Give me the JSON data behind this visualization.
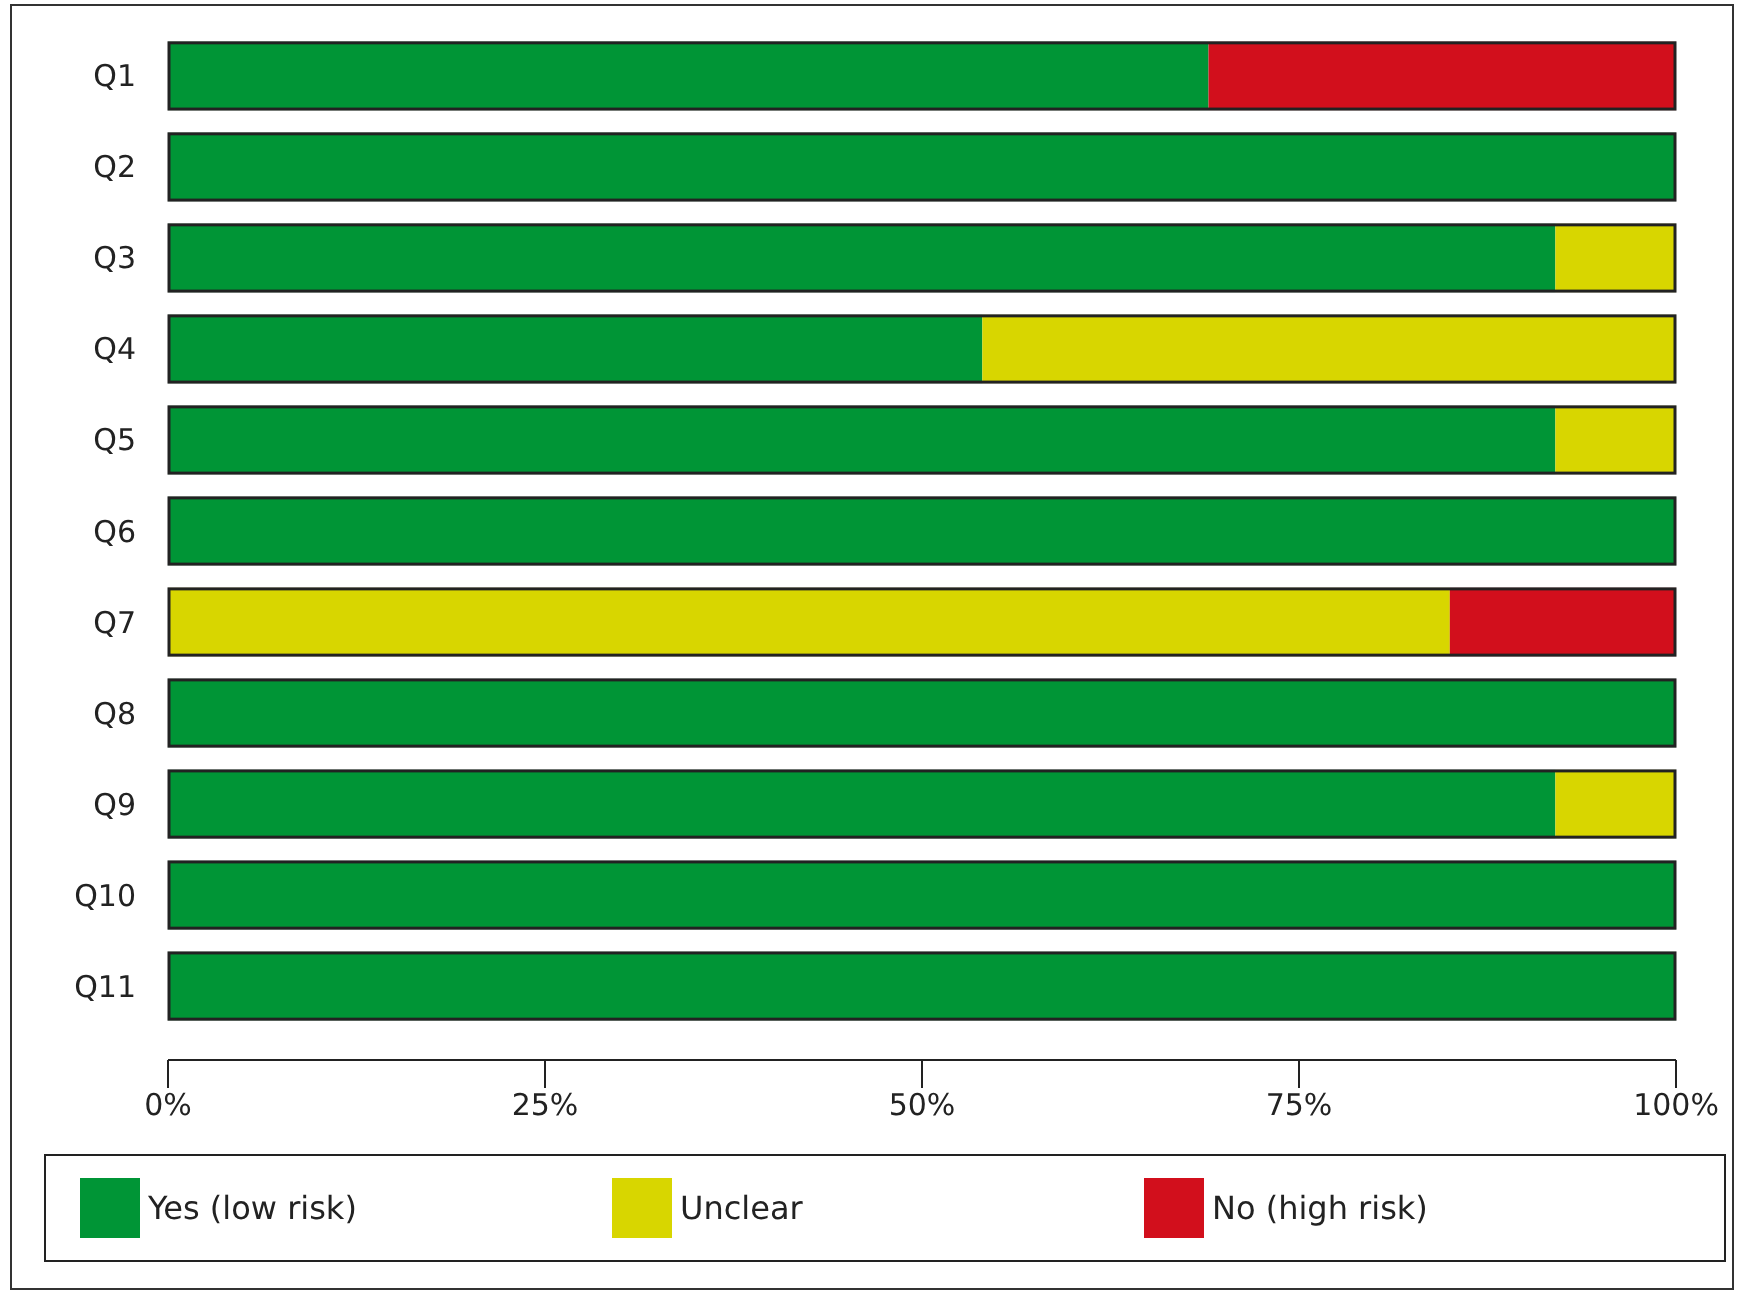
{
  "chart_data": {
    "type": "bar",
    "orientation": "horizontal",
    "stacked": true,
    "categories": [
      "Q1",
      "Q2",
      "Q3",
      "Q4",
      "Q5",
      "Q6",
      "Q7",
      "Q8",
      "Q9",
      "Q10",
      "Q11"
    ],
    "series": [
      {
        "name": "Yes (low risk)",
        "color": "#009536",
        "values": [
          69,
          100,
          92,
          54,
          92,
          100,
          0,
          100,
          92,
          100,
          100
        ]
      },
      {
        "name": "Unclear",
        "color": "#d8d600",
        "values": [
          0,
          0,
          8,
          46,
          8,
          0,
          85,
          0,
          8,
          0,
          0
        ]
      },
      {
        "name": "No (high risk)",
        "color": "#d20f1c",
        "values": [
          31,
          0,
          0,
          0,
          0,
          0,
          15,
          0,
          0,
          0,
          0
        ]
      }
    ],
    "xlim": [
      0,
      100
    ],
    "xticks": [
      {
        "value": 0,
        "label": "0%"
      },
      {
        "value": 25,
        "label": "25%"
      },
      {
        "value": 50,
        "label": "50%"
      },
      {
        "value": 75,
        "label": "75%"
      },
      {
        "value": 100,
        "label": "100%"
      }
    ],
    "legend": "bottom",
    "grid": false
  }
}
